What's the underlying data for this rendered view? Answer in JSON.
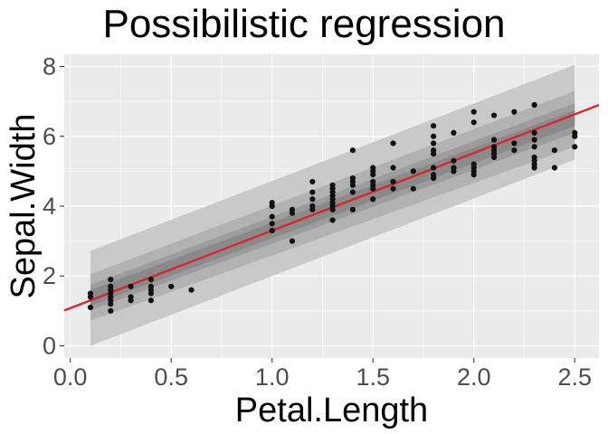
{
  "chart_data": {
    "type": "scatter",
    "title": "Possibilistic regression",
    "xlabel": "Petal.Length",
    "ylabel": "Sepal.Width",
    "xlim": [
      -0.03,
      2.62
    ],
    "ylim": [
      -0.35,
      8.35
    ],
    "x_ticks": [
      "0.0",
      "0.5",
      "1.0",
      "1.5",
      "2.0",
      "2.5"
    ],
    "y_ticks": [
      "0",
      "2",
      "4",
      "6",
      "8"
    ],
    "grid": true,
    "legend": "none",
    "colors": {
      "panel": "#ebebeb",
      "grid": "#ffffff",
      "points": "#111111",
      "line": "#d7262e",
      "band_outer": "#c9c9c9",
      "band_middle": "#b2b2b2",
      "band_inner": "#9d9d9d",
      "band_core": "#8a8a8a"
    },
    "regression_line": {
      "intercept": 1.08,
      "slope": 2.22
    },
    "bands": [
      {
        "name": "outer",
        "x_range": [
          0.1,
          2.5
        ],
        "lower": [
          0.0,
          5.33
        ],
        "upper": [
          2.72,
          8.05
        ]
      },
      {
        "name": "middle",
        "x_range": [
          0.1,
          2.5
        ],
        "lower": [
          0.72,
          5.7
        ],
        "upper": [
          2.05,
          7.3
        ]
      },
      {
        "name": "inner",
        "x_range": [
          0.1,
          2.5
        ],
        "lower": [
          1.02,
          6.1
        ],
        "upper": [
          1.75,
          6.95
        ]
      },
      {
        "name": "core",
        "x_range": [
          0.1,
          2.5
        ],
        "lower": [
          1.15,
          6.3
        ],
        "upper": [
          1.6,
          6.75
        ]
      }
    ],
    "points": [
      [
        0.1,
        1.1
      ],
      [
        0.1,
        1.4
      ],
      [
        0.1,
        1.5
      ],
      [
        0.2,
        1.0
      ],
      [
        0.2,
        1.2
      ],
      [
        0.2,
        1.3
      ],
      [
        0.2,
        1.4
      ],
      [
        0.2,
        1.5
      ],
      [
        0.2,
        1.6
      ],
      [
        0.2,
        1.7
      ],
      [
        0.2,
        1.9
      ],
      [
        0.3,
        1.3
      ],
      [
        0.3,
        1.4
      ],
      [
        0.3,
        1.7
      ],
      [
        0.4,
        1.3
      ],
      [
        0.4,
        1.5
      ],
      [
        0.4,
        1.6
      ],
      [
        0.4,
        1.7
      ],
      [
        0.4,
        1.9
      ],
      [
        0.5,
        1.7
      ],
      [
        0.6,
        1.6
      ],
      [
        1.0,
        3.3
      ],
      [
        1.0,
        3.5
      ],
      [
        1.0,
        3.7
      ],
      [
        1.0,
        4.0
      ],
      [
        1.0,
        4.1
      ],
      [
        1.1,
        3.0
      ],
      [
        1.1,
        3.8
      ],
      [
        1.1,
        3.9
      ],
      [
        1.2,
        3.9
      ],
      [
        1.2,
        4.0
      ],
      [
        1.2,
        4.2
      ],
      [
        1.2,
        4.4
      ],
      [
        1.2,
        4.7
      ],
      [
        1.3,
        3.6
      ],
      [
        1.3,
        3.9
      ],
      [
        1.3,
        4.0
      ],
      [
        1.3,
        4.1
      ],
      [
        1.3,
        4.2
      ],
      [
        1.3,
        4.3
      ],
      [
        1.3,
        4.4
      ],
      [
        1.3,
        4.5
      ],
      [
        1.3,
        4.6
      ],
      [
        1.4,
        3.9
      ],
      [
        1.4,
        4.4
      ],
      [
        1.4,
        4.6
      ],
      [
        1.4,
        4.7
      ],
      [
        1.4,
        4.8
      ],
      [
        1.4,
        5.6
      ],
      [
        1.5,
        4.2
      ],
      [
        1.5,
        4.5
      ],
      [
        1.5,
        4.6
      ],
      [
        1.5,
        4.7
      ],
      [
        1.5,
        4.9
      ],
      [
        1.5,
        5.0
      ],
      [
        1.5,
        5.1
      ],
      [
        1.6,
        4.5
      ],
      [
        1.6,
        4.7
      ],
      [
        1.6,
        5.1
      ],
      [
        1.6,
        5.8
      ],
      [
        1.7,
        4.5
      ],
      [
        1.7,
        5.0
      ],
      [
        1.8,
        4.8
      ],
      [
        1.8,
        4.9
      ],
      [
        1.8,
        5.1
      ],
      [
        1.8,
        5.5
      ],
      [
        1.8,
        5.6
      ],
      [
        1.8,
        5.8
      ],
      [
        1.8,
        6.0
      ],
      [
        1.8,
        6.3
      ],
      [
        1.9,
        5.0
      ],
      [
        1.9,
        5.1
      ],
      [
        1.9,
        5.3
      ],
      [
        1.9,
        6.1
      ],
      [
        2.0,
        4.9
      ],
      [
        2.0,
        5.0
      ],
      [
        2.0,
        5.1
      ],
      [
        2.0,
        5.2
      ],
      [
        2.0,
        6.4
      ],
      [
        2.0,
        6.7
      ],
      [
        2.1,
        5.4
      ],
      [
        2.1,
        5.5
      ],
      [
        2.1,
        5.6
      ],
      [
        2.1,
        5.7
      ],
      [
        2.1,
        5.9
      ],
      [
        2.1,
        6.6
      ],
      [
        2.2,
        5.6
      ],
      [
        2.2,
        5.8
      ],
      [
        2.2,
        6.7
      ],
      [
        2.3,
        5.1
      ],
      [
        2.3,
        5.2
      ],
      [
        2.3,
        5.3
      ],
      [
        2.3,
        5.4
      ],
      [
        2.3,
        5.7
      ],
      [
        2.3,
        5.9
      ],
      [
        2.3,
        6.1
      ],
      [
        2.3,
        6.9
      ],
      [
        2.4,
        5.1
      ],
      [
        2.4,
        5.6
      ],
      [
        2.5,
        5.7
      ],
      [
        2.5,
        6.0
      ],
      [
        2.5,
        6.1
      ]
    ]
  }
}
